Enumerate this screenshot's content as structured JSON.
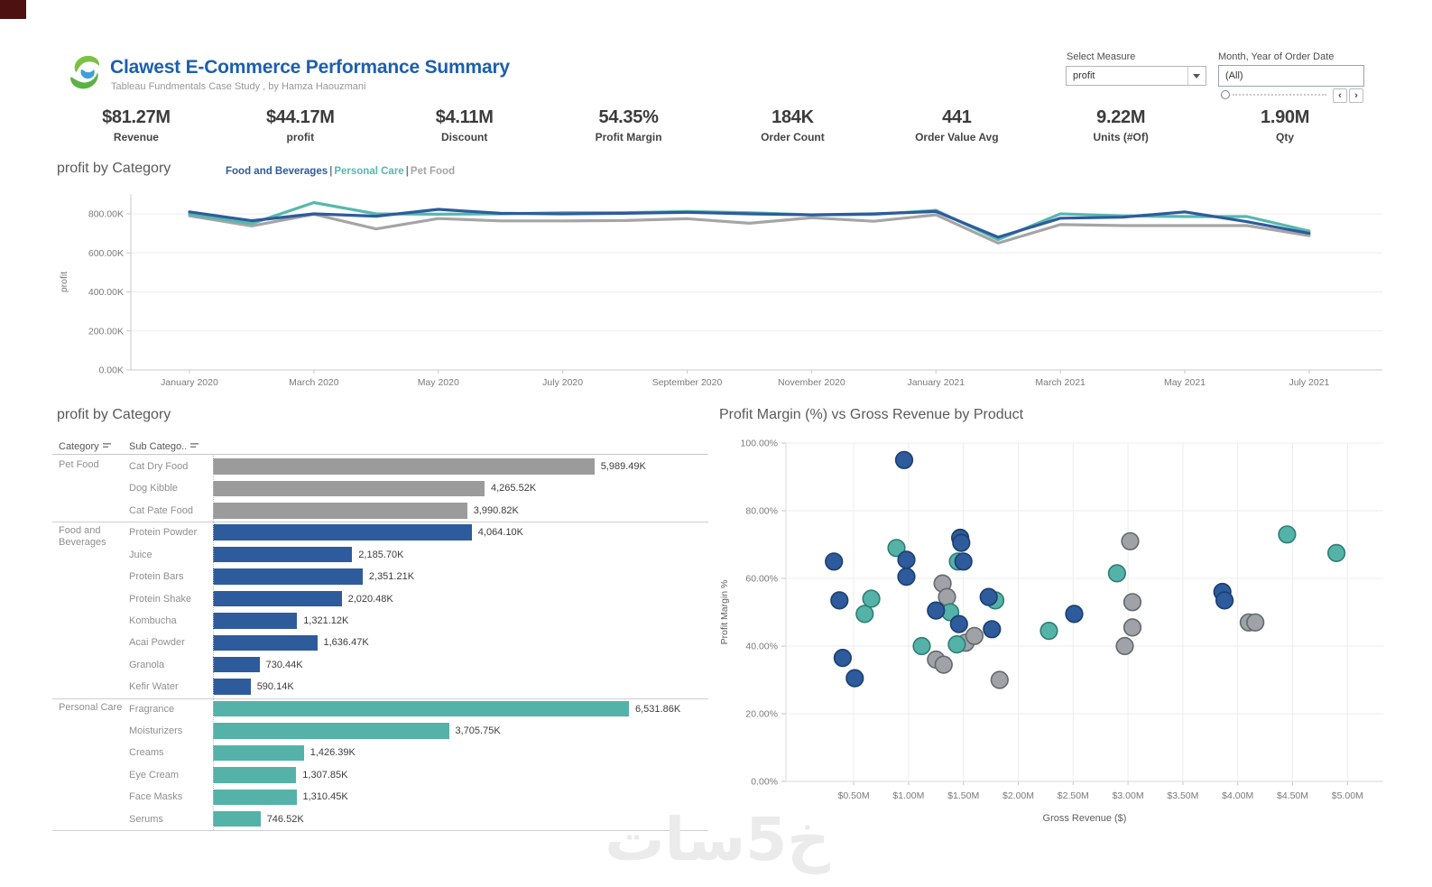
{
  "header": {
    "title": "Clawest E-Commerce Performance Summary",
    "subtitle": "Tableau Fundmentals Case Study , by Hamza Haouzmani",
    "select_measure_label": "Select Measure",
    "select_measure_value": "profit",
    "date_filter_label": "Month, Year of Order Date",
    "date_filter_value": "(All)",
    "slider_prev": "‹",
    "slider_next": "›"
  },
  "kpis": [
    {
      "value": "$81.27M",
      "label": "Revenue"
    },
    {
      "value": "$44.17M",
      "label": "profit"
    },
    {
      "value": "$4.11M",
      "label": "Discount"
    },
    {
      "value": "54.35%",
      "label": "Profit Margin"
    },
    {
      "value": "184K",
      "label": "Order Count"
    },
    {
      "value": "441",
      "label": "Order Value Avg"
    },
    {
      "value": "9.22M",
      "label": "Units (#Of)"
    },
    {
      "value": "1.90M",
      "label": "Qty"
    }
  ],
  "chart_data": [
    {
      "id": "profit-by-category-line",
      "type": "line",
      "title": "profit by Category",
      "ylabel": "profit",
      "legend_position": "top",
      "grid": true,
      "ylim": [
        0,
        900
      ],
      "y_ticks": [
        {
          "label": "0.00K",
          "value": 0
        },
        {
          "label": "200.00K",
          "value": 200
        },
        {
          "label": "400.00K",
          "value": 400
        },
        {
          "label": "600.00K",
          "value": 600
        },
        {
          "label": "800.00K",
          "value": 800
        }
      ],
      "x": [
        "January 2020",
        "February 2020",
        "March 2020",
        "April 2020",
        "May 2020",
        "June 2020",
        "July 2020",
        "August 2020",
        "September 2020",
        "October 2020",
        "November 2020",
        "December 2020",
        "January 2021",
        "February 2021",
        "March 2021",
        "April 2021",
        "May 2021",
        "June 2021",
        "July 2021"
      ],
      "x_label_every": 2,
      "series": [
        {
          "name": "Food and Beverages",
          "color": "#2e5b9c",
          "values": [
            810,
            765,
            800,
            788,
            823,
            803,
            800,
            803,
            808,
            800,
            795,
            800,
            812,
            680,
            778,
            783,
            810,
            760,
            700
          ]
        },
        {
          "name": "Personal Care",
          "color": "#56b8ae",
          "values": [
            798,
            750,
            858,
            800,
            798,
            800,
            806,
            806,
            812,
            806,
            795,
            797,
            818,
            668,
            800,
            790,
            786,
            786,
            712
          ]
        },
        {
          "name": "Pet Food",
          "color": "#a5a5a5",
          "values": [
            790,
            738,
            798,
            723,
            776,
            764,
            764,
            766,
            775,
            752,
            780,
            762,
            795,
            650,
            745,
            740,
            740,
            740,
            688
          ]
        }
      ]
    },
    {
      "id": "profit-by-category-bars",
      "type": "bar",
      "title": "profit by  Category",
      "columns": [
        "Category",
        "Sub Catego.."
      ],
      "unit": "K",
      "max_value": 6531.86,
      "groups": [
        {
          "category": "Pet Food",
          "color": "#9b9b9b",
          "rows": [
            {
              "label": "Cat Dry Food",
              "value": 5989.49,
              "value_label": "5,989.49K"
            },
            {
              "label": "Dog Kibble",
              "value": 4265.52,
              "value_label": "4,265.52K"
            },
            {
              "label": "Cat Pate Food",
              "value": 3990.82,
              "value_label": "3,990.82K"
            }
          ]
        },
        {
          "category": "Food and Beverages",
          "color": "#2e5b9c",
          "rows": [
            {
              "label": "Protein Powder",
              "value": 4064.1,
              "value_label": "4,064.10K"
            },
            {
              "label": "Juice",
              "value": 2185.7,
              "value_label": "2,185.70K"
            },
            {
              "label": "Protein Bars",
              "value": 2351.21,
              "value_label": "2,351.21K"
            },
            {
              "label": "Protein Shake",
              "value": 2020.48,
              "value_label": "2,020.48K"
            },
            {
              "label": "Kombucha",
              "value": 1321.12,
              "value_label": "1,321.12K"
            },
            {
              "label": "Acai Powder",
              "value": 1636.47,
              "value_label": "1,636.47K"
            },
            {
              "label": "Granola",
              "value": 730.44,
              "value_label": "730.44K"
            },
            {
              "label": "Kefir Water",
              "value": 590.14,
              "value_label": "590.14K"
            }
          ]
        },
        {
          "category": "Personal Care",
          "color": "#55b2a8",
          "rows": [
            {
              "label": "Fragrance",
              "value": 6531.86,
              "value_label": "6,531.86K"
            },
            {
              "label": "Moisturizers",
              "value": 3705.75,
              "value_label": "3,705.75K"
            },
            {
              "label": "Creams",
              "value": 1426.39,
              "value_label": "1,426.39K"
            },
            {
              "label": "Eye Cream",
              "value": 1307.85,
              "value_label": "1,307.85K"
            },
            {
              "label": "Face Masks",
              "value": 1310.45,
              "value_label": "1,310.45K"
            },
            {
              "label": "Serums",
              "value": 746.52,
              "value_label": "746.52K"
            }
          ]
        }
      ]
    },
    {
      "id": "margin-vs-revenue-scatter",
      "type": "scatter",
      "title": "Profit Margin (%) vs Gross Revenue by Product",
      "xlabel": "Gross Revenue ($)",
      "ylabel": "Profit Margin %",
      "grid": true,
      "xlim": [
        0,
        5.3
      ],
      "ylim": [
        0,
        100
      ],
      "x_ticks": [
        {
          "label": "$0.50M",
          "value": 0.5
        },
        {
          "label": "$1.00M",
          "value": 1.0
        },
        {
          "label": "$1.50M",
          "value": 1.5
        },
        {
          "label": "$2.00M",
          "value": 2.0
        },
        {
          "label": "$2.50M",
          "value": 2.5
        },
        {
          "label": "$3.00M",
          "value": 3.0
        },
        {
          "label": "$3.50M",
          "value": 3.5
        },
        {
          "label": "$4.00M",
          "value": 4.0
        },
        {
          "label": "$4.50M",
          "value": 4.5
        },
        {
          "label": "$5.00M",
          "value": 5.0
        }
      ],
      "y_ticks": [
        {
          "label": "0.00%",
          "value": 0
        },
        {
          "label": "20.00%",
          "value": 20
        },
        {
          "label": "40.00%",
          "value": 40
        },
        {
          "label": "60.00%",
          "value": 60
        },
        {
          "label": "80.00%",
          "value": 80
        },
        {
          "label": "100.00%",
          "value": 100
        }
      ],
      "series": [
        {
          "name": "Pet Food",
          "color": "#9fa3a7",
          "stroke": "#64696e",
          "points": [
            [
              1.31,
              58.5
            ],
            [
              1.35,
              54.5
            ],
            [
              1.25,
              36
            ],
            [
              1.32,
              34.5
            ],
            [
              1.52,
              41
            ],
            [
              1.6,
              43
            ],
            [
              1.83,
              30
            ],
            [
              2.97,
              40
            ],
            [
              3.02,
              71
            ],
            [
              3.04,
              53
            ],
            [
              3.04,
              45.5
            ],
            [
              4.1,
              47
            ],
            [
              4.16,
              47
            ]
          ]
        },
        {
          "name": "Personal Care",
          "color": "#55b2a8",
          "stroke": "#2e7d74",
          "points": [
            [
              0.6,
              49.5
            ],
            [
              0.66,
              54
            ],
            [
              0.89,
              69
            ],
            [
              1.12,
              40
            ],
            [
              1.38,
              50
            ],
            [
              1.44,
              40.5
            ],
            [
              1.45,
              65
            ],
            [
              1.79,
              53.5
            ],
            [
              2.28,
              44.5
            ],
            [
              2.9,
              61.5
            ],
            [
              4.45,
              73
            ],
            [
              4.9,
              67.5
            ]
          ]
        },
        {
          "name": "Food and Beverages",
          "color": "#2e5b9c",
          "stroke": "#1b3f6e",
          "points": [
            [
              0.96,
              95
            ],
            [
              0.32,
              65
            ],
            [
              0.37,
              53.5
            ],
            [
              0.4,
              36.5
            ],
            [
              0.51,
              30.5
            ],
            [
              0.98,
              65.5
            ],
            [
              0.98,
              60.5
            ],
            [
              1.25,
              50.5
            ],
            [
              1.46,
              46.5
            ],
            [
              1.47,
              72
            ],
            [
              1.48,
              70.5
            ],
            [
              1.5,
              65
            ],
            [
              1.73,
              54.5
            ],
            [
              1.76,
              45
            ],
            [
              2.51,
              49.5
            ],
            [
              3.86,
              56
            ],
            [
              3.88,
              53.5
            ]
          ]
        }
      ]
    }
  ],
  "watermark": {
    "text": "خ5سات"
  }
}
